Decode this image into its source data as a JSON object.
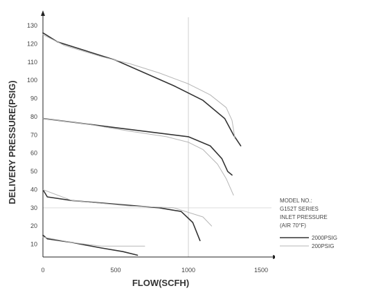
{
  "chart_data": {
    "type": "line",
    "title": "",
    "xlabel": "FLOW(SCFH)",
    "ylabel": "DELIVERY PRESSURE(PSIG)",
    "xlim": [
      0,
      1500
    ],
    "ylim": [
      0,
      130
    ],
    "x_ticks": [
      0,
      500,
      1000,
      1500
    ],
    "y_ticks": [
      10,
      20,
      30,
      40,
      50,
      60,
      70,
      80,
      90,
      100,
      110,
      120,
      130
    ],
    "grid": "reference lines at x=1000 and y=30",
    "legend": {
      "position": "bottom-right",
      "heading": [
        "MODEL NO.:",
        "G152T SERIES",
        "INLET PRESSURE",
        "(AIR 70°F)"
      ],
      "entries": [
        "2000PSIG",
        "200PSIG"
      ]
    },
    "series": [
      {
        "name": "2000PSIG",
        "style": "solid",
        "curves": [
          [
            [
              0,
              126
            ],
            [
              100,
              121
            ],
            [
              300,
              116
            ],
            [
              500,
              111
            ],
            [
              700,
              104
            ],
            [
              900,
              97
            ],
            [
              1100,
              89
            ],
            [
              1250,
              79
            ],
            [
              1310,
              70
            ],
            [
              1360,
              64
            ]
          ],
          [
            [
              0,
              79
            ],
            [
              200,
              77
            ],
            [
              500,
              74
            ],
            [
              800,
              71
            ],
            [
              1000,
              69
            ],
            [
              1150,
              64
            ],
            [
              1230,
              57
            ],
            [
              1270,
              50
            ],
            [
              1300,
              48
            ]
          ],
          [
            [
              0,
              40
            ],
            [
              30,
              36
            ],
            [
              200,
              34
            ],
            [
              500,
              32
            ],
            [
              800,
              30
            ],
            [
              950,
              28
            ],
            [
              1030,
              22
            ],
            [
              1060,
              16
            ],
            [
              1080,
              12
            ]
          ],
          [
            [
              0,
              15
            ],
            [
              30,
              13
            ],
            [
              200,
              11
            ],
            [
              400,
              8
            ],
            [
              550,
              6
            ],
            [
              650,
              4
            ]
          ]
        ]
      },
      {
        "name": "200PSIG",
        "style": "light",
        "curves": [
          [
            [
              0,
              125
            ],
            [
              150,
              119
            ],
            [
              400,
              113
            ],
            [
              600,
              109
            ],
            [
              800,
              104
            ],
            [
              1000,
              98
            ],
            [
              1150,
              92
            ],
            [
              1260,
              85
            ],
            [
              1300,
              78
            ],
            [
              1320,
              68
            ]
          ],
          [
            [
              0,
              79
            ],
            [
              300,
              76
            ],
            [
              600,
              72
            ],
            [
              850,
              69
            ],
            [
              1000,
              66
            ],
            [
              1100,
              62
            ],
            [
              1200,
              54
            ],
            [
              1260,
              46
            ],
            [
              1310,
              37
            ]
          ],
          [
            [
              0,
              40
            ],
            [
              200,
              34
            ],
            [
              600,
              31
            ],
            [
              900,
              30
            ],
            [
              1100,
              25
            ],
            [
              1160,
              20
            ]
          ],
          [
            [
              0,
              14
            ],
            [
              200,
              11
            ],
            [
              400,
              9
            ],
            [
              600,
              9
            ],
            [
              700,
              9
            ]
          ]
        ]
      }
    ]
  }
}
